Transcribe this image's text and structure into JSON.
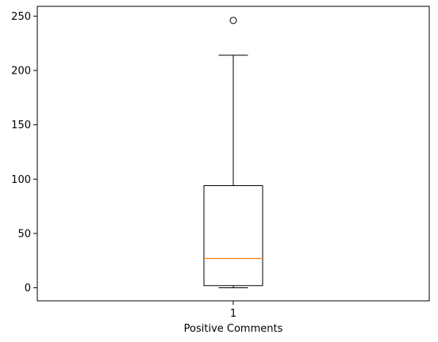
{
  "chart_data": {
    "type": "box",
    "categories": [
      "1"
    ],
    "xlabel": "Positive Comments",
    "ylabel": "",
    "ylim": [
      -12,
      259
    ],
    "yticks": [
      0,
      50,
      100,
      150,
      200,
      250
    ],
    "grid": false,
    "boxes": [
      {
        "category": "1",
        "min": 0,
        "q1": 2,
        "median": 27,
        "q3": 94,
        "max": 214,
        "outliers": [
          246
        ]
      }
    ],
    "colors": {
      "box": "#000000",
      "median": "#ff7f0e",
      "axes": "#000000"
    }
  }
}
